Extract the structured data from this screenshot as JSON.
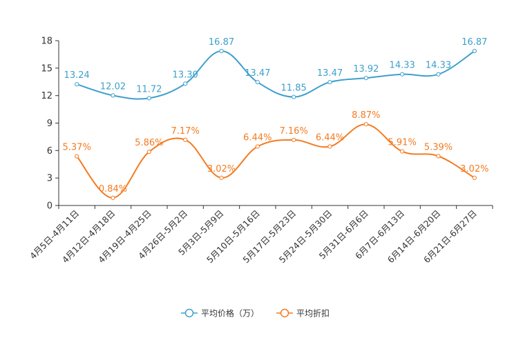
{
  "chart_data": {
    "type": "line",
    "categories": [
      "4月5日-4月11日",
      "4月12日-4月18日",
      "4月19日-4月25日",
      "4月26日-5月2日",
      "5月3日-5月9日",
      "5月10日-5月16日",
      "5月17日-5月23日",
      "5月24日-5月30日",
      "5月31日-6月6日",
      "6月7日-6月13日",
      "6月14日-6月20日",
      "6月21日-6月27日"
    ],
    "series": [
      {
        "name": "平均价格（万）",
        "color": "#3d9fcb",
        "values": [
          13.24,
          12.02,
          11.72,
          13.3,
          16.87,
          13.47,
          11.85,
          13.47,
          13.92,
          14.33,
          14.33,
          16.87
        ],
        "labels": [
          "13.24",
          "12.02",
          "11.72",
          "13.30",
          "16.87",
          "13.47",
          "11.85",
          "13.47",
          "13.92",
          "14.33",
          "14.33",
          "16.87"
        ]
      },
      {
        "name": "平均折扣",
        "color": "#f47a1f",
        "values": [
          5.37,
          0.84,
          5.86,
          7.17,
          3.02,
          6.44,
          7.16,
          6.44,
          8.87,
          5.91,
          5.39,
          3.02
        ],
        "labels": [
          "5.37%",
          "0.84%",
          "5.86%",
          "7.17%",
          "3.02%",
          "6.44%",
          "7.16%",
          "6.44%",
          "8.87%",
          "5.91%",
          "5.39%",
          "3.02%"
        ]
      }
    ],
    "yticks": [
      "0",
      "3",
      "6",
      "9",
      "12",
      "15",
      "18"
    ],
    "ylim": [
      0,
      18
    ],
    "title": "",
    "xlabel": "",
    "ylabel": "",
    "grid": false,
    "legend_position": "bottom-center",
    "smooth": true
  }
}
